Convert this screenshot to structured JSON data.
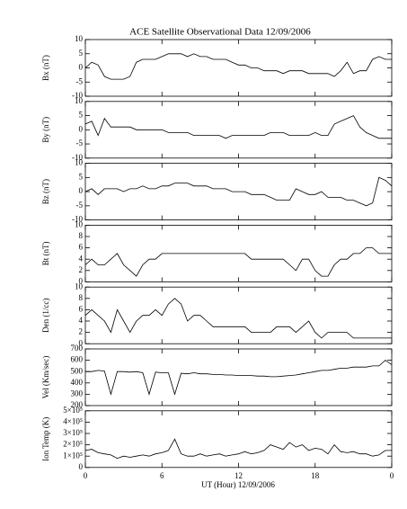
{
  "chart_data": [
    {
      "type": "line",
      "title": "ACE Satellite Observational Data   12/09/2006",
      "ylabel": "Bx (nT)",
      "color": "#000000",
      "ylim": [
        -10,
        10
      ],
      "yticks": [
        -10,
        -5,
        0,
        5,
        10
      ],
      "x": [
        0,
        0.5,
        1,
        1.5,
        2,
        2.5,
        3,
        3.5,
        4,
        4.5,
        5,
        5.5,
        6,
        6.5,
        7,
        7.5,
        8,
        8.5,
        9,
        9.5,
        10,
        10.5,
        11,
        11.5,
        12,
        12.5,
        13,
        13.5,
        14,
        14.5,
        15,
        15.5,
        16,
        16.5,
        17,
        17.5,
        18,
        18.5,
        19,
        19.5,
        20,
        20.5,
        21,
        21.5,
        22,
        22.5,
        23,
        23.5,
        24
      ],
      "values": [
        0,
        2,
        1,
        -3,
        -4,
        -4,
        -4,
        -3,
        2,
        3,
        3,
        3,
        4,
        5,
        5,
        5,
        4,
        5,
        4,
        4,
        3,
        3,
        3,
        2,
        1,
        1,
        0,
        0,
        -1,
        -1,
        -1,
        -2,
        -1,
        -1,
        -1,
        -2,
        -2,
        -2,
        -2,
        -3,
        -1,
        2,
        -2,
        -1,
        -1,
        3,
        4,
        3,
        3
      ]
    },
    {
      "type": "line",
      "ylabel": "By (nT)",
      "color": "#000000",
      "ylim": [
        -10,
        10
      ],
      "yticks": [
        -10,
        -5,
        0,
        5,
        10
      ],
      "x": [
        0,
        0.5,
        1,
        1.5,
        2,
        2.5,
        3,
        3.5,
        4,
        4.5,
        5,
        5.5,
        6,
        6.5,
        7,
        7.5,
        8,
        8.5,
        9,
        9.5,
        10,
        10.5,
        11,
        11.5,
        12,
        12.5,
        13,
        13.5,
        14,
        14.5,
        15,
        15.5,
        16,
        16.5,
        17,
        17.5,
        18,
        18.5,
        19,
        19.5,
        20,
        20.5,
        21,
        21.5,
        22,
        22.5,
        23,
        23.5,
        24
      ],
      "values": [
        2,
        3,
        -2,
        4,
        1,
        1,
        1,
        1,
        0,
        0,
        0,
        0,
        0,
        -1,
        -1,
        -1,
        -1,
        -2,
        -2,
        -2,
        -2,
        -2,
        -3,
        -2,
        -2,
        -2,
        -2,
        -2,
        -2,
        -1,
        -1,
        -1,
        -2,
        -2,
        -2,
        -2,
        -1,
        -2,
        -2,
        2,
        3,
        4,
        5,
        1,
        -1,
        -2,
        -3,
        -3,
        -3
      ]
    },
    {
      "type": "line",
      "ylabel": "Bz (nT)",
      "color": "#000000",
      "ylim": [
        -10,
        10
      ],
      "yticks": [
        -10,
        -5,
        0,
        5,
        10
      ],
      "x": [
        0,
        0.5,
        1,
        1.5,
        2,
        2.5,
        3,
        3.5,
        4,
        4.5,
        5,
        5.5,
        6,
        6.5,
        7,
        7.5,
        8,
        8.5,
        9,
        9.5,
        10,
        10.5,
        11,
        11.5,
        12,
        12.5,
        13,
        13.5,
        14,
        14.5,
        15,
        15.5,
        16,
        16.5,
        17,
        17.5,
        18,
        18.5,
        19,
        19.5,
        20,
        20.5,
        21,
        21.5,
        22,
        22.5,
        23,
        23.5,
        24
      ],
      "values": [
        0,
        1,
        -1,
        1,
        1,
        1,
        0,
        1,
        1,
        2,
        1,
        1,
        2,
        2,
        3,
        3,
        3,
        2,
        2,
        2,
        1,
        1,
        1,
        0,
        0,
        0,
        -1,
        -1,
        -1,
        -2,
        -3,
        -3,
        -3,
        1,
        0,
        -1,
        -1,
        0,
        -2,
        -2,
        -2,
        -3,
        -3,
        -4,
        -5,
        -4,
        5,
        4,
        2
      ]
    },
    {
      "type": "line",
      "ylabel": "Bt (nT)",
      "color": "#000000",
      "ylim": [
        0,
        10
      ],
      "yticks": [
        0,
        2,
        4,
        6,
        8,
        10
      ],
      "x": [
        0,
        0.5,
        1,
        1.5,
        2,
        2.5,
        3,
        3.5,
        4,
        4.5,
        5,
        5.5,
        6,
        6.5,
        7,
        7.5,
        8,
        8.5,
        9,
        9.5,
        10,
        10.5,
        11,
        11.5,
        12,
        12.5,
        13,
        13.5,
        14,
        14.5,
        15,
        15.5,
        16,
        16.5,
        17,
        17.5,
        18,
        18.5,
        19,
        19.5,
        20,
        20.5,
        21,
        21.5,
        22,
        22.5,
        23,
        23.5,
        24
      ],
      "values": [
        3,
        4,
        3,
        3,
        4,
        5,
        3,
        2,
        1,
        3,
        4,
        4,
        5,
        5,
        5,
        5,
        5,
        5,
        5,
        5,
        5,
        5,
        5,
        5,
        5,
        5,
        4,
        4,
        4,
        4,
        4,
        4,
        3,
        2,
        4,
        4,
        2,
        1,
        1,
        3,
        4,
        4,
        5,
        5,
        6,
        6,
        5,
        5,
        5
      ]
    },
    {
      "type": "line",
      "ylabel": "Den (1/cc)",
      "color": "#000000",
      "ylim": [
        0,
        10
      ],
      "yticks": [
        0,
        2,
        4,
        6,
        8,
        10
      ],
      "x": [
        0,
        0.5,
        1,
        1.5,
        2,
        2.5,
        3,
        3.5,
        4,
        4.5,
        5,
        5.5,
        6,
        6.5,
        7,
        7.5,
        8,
        8.5,
        9,
        9.5,
        10,
        10.5,
        11,
        11.5,
        12,
        12.5,
        13,
        13.5,
        14,
        14.5,
        15,
        15.5,
        16,
        16.5,
        17,
        17.5,
        18,
        18.5,
        19,
        19.5,
        20,
        20.5,
        21,
        21.5,
        22,
        22.5,
        23,
        23.5,
        24
      ],
      "values": [
        5,
        6,
        5,
        4,
        2,
        6,
        4,
        2,
        4,
        5,
        5,
        6,
        5,
        7,
        8,
        7,
        4,
        5,
        5,
        4,
        3,
        3,
        3,
        3,
        3,
        3,
        2,
        2,
        2,
        2,
        3,
        3,
        3,
        2,
        3,
        4,
        2,
        1,
        2,
        2,
        2,
        2,
        1,
        1,
        1,
        1,
        1,
        1,
        1
      ]
    },
    {
      "type": "line",
      "ylabel": "Vel (Km/sec)",
      "color": "#000000",
      "ylim": [
        200,
        700
      ],
      "yticks": [
        200,
        300,
        400,
        500,
        600,
        700
      ],
      "x": [
        0,
        0.5,
        1,
        1.5,
        2,
        2.5,
        3,
        3.5,
        4,
        4.5,
        5,
        5.5,
        6,
        6.5,
        7,
        7.5,
        8,
        8.5,
        9,
        9.5,
        10,
        10.5,
        11,
        11.5,
        12,
        12.5,
        13,
        13.5,
        14,
        14.5,
        15,
        15.5,
        16,
        16.5,
        17,
        17.5,
        18,
        18.5,
        19,
        19.5,
        20,
        20.5,
        21,
        21.5,
        22,
        22.5,
        23,
        23.5,
        24
      ],
      "values": [
        500,
        500,
        510,
        505,
        300,
        500,
        500,
        495,
        500,
        490,
        300,
        495,
        490,
        490,
        300,
        485,
        480,
        490,
        480,
        480,
        475,
        475,
        470,
        470,
        465,
        465,
        465,
        460,
        460,
        455,
        455,
        460,
        465,
        470,
        480,
        490,
        500,
        510,
        510,
        520,
        530,
        530,
        540,
        540,
        540,
        550,
        550,
        600,
        560
      ]
    },
    {
      "type": "line",
      "ylabel": "Ion Temp (K)",
      "xlabel": "UT (Hour)  12/09/2006",
      "color": "#000000",
      "ylim": [
        0,
        500000
      ],
      "yticks": [
        0,
        {
          "value": 100000,
          "label": "1×10⁵"
        },
        {
          "value": 200000,
          "label": "2×10⁵"
        },
        {
          "value": 300000,
          "label": "3×10⁵"
        },
        {
          "value": 400000,
          "label": "4×10⁵"
        },
        {
          "value": 500000,
          "label": "5×10⁵"
        }
      ],
      "xlim": [
        0,
        24
      ],
      "xticks": [
        0,
        6,
        12,
        18,
        {
          "value": 24,
          "label": "0"
        }
      ],
      "x": [
        0,
        0.5,
        1,
        1.5,
        2,
        2.5,
        3,
        3.5,
        4,
        4.5,
        5,
        5.5,
        6,
        6.5,
        7,
        7.5,
        8,
        8.5,
        9,
        9.5,
        10,
        10.5,
        11,
        11.5,
        12,
        12.5,
        13,
        13.5,
        14,
        14.5,
        15,
        15.5,
        16,
        16.5,
        17,
        17.5,
        18,
        18.5,
        19,
        19.5,
        20,
        20.5,
        21,
        21.5,
        22,
        22.5,
        23,
        23.5,
        24
      ],
      "values": [
        150000,
        160000,
        130000,
        120000,
        110000,
        80000,
        100000,
        90000,
        100000,
        110000,
        100000,
        120000,
        130000,
        150000,
        250000,
        120000,
        100000,
        100000,
        120000,
        100000,
        110000,
        120000,
        100000,
        110000,
        120000,
        140000,
        120000,
        130000,
        150000,
        200000,
        180000,
        160000,
        220000,
        180000,
        200000,
        150000,
        170000,
        160000,
        120000,
        200000,
        140000,
        130000,
        140000,
        120000,
        120000,
        100000,
        110000,
        150000,
        150000
      ]
    }
  ]
}
